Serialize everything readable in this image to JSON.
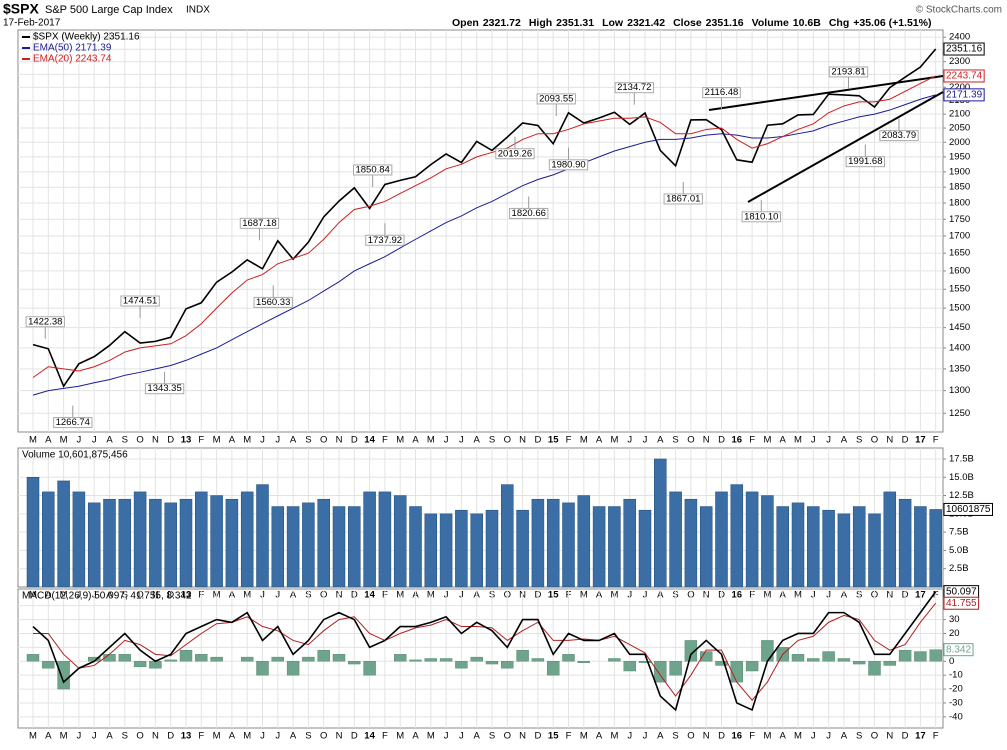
{
  "header": {
    "symbol": "$SPX",
    "name": "S&P 500 Large Cap Index",
    "exchange": "INDX",
    "date": "17-Feb-2017",
    "quote": [
      {
        "label": "Open",
        "value": "2321.72"
      },
      {
        "label": "High",
        "value": "2351.31"
      },
      {
        "label": "Low",
        "value": "2321.42"
      },
      {
        "label": "Close",
        "value": "2351.16"
      },
      {
        "label": "Volume",
        "value": "10.6B"
      },
      {
        "label": "Chg",
        "value": "+35.06 (+1.51%)"
      }
    ],
    "copyright": "© StockCharts.com"
  },
  "chart_data": [
    {
      "type": "line",
      "log": true,
      "grid": true,
      "categories": [
        "M",
        "A",
        "M",
        "J",
        "J",
        "A",
        "S",
        "O",
        "N",
        "D",
        "13",
        "F",
        "M",
        "A",
        "M",
        "J",
        "J",
        "A",
        "S",
        "O",
        "N",
        "D",
        "14",
        "F",
        "M",
        "A",
        "M",
        "J",
        "J",
        "A",
        "S",
        "O",
        "N",
        "D",
        "15",
        "F",
        "M",
        "A",
        "M",
        "J",
        "J",
        "A",
        "S",
        "O",
        "N",
        "D",
        "16",
        "F",
        "M",
        "A",
        "M",
        "J",
        "J",
        "A",
        "S",
        "O",
        "N",
        "D",
        "17",
        "F"
      ],
      "series": [
        {
          "name": "$SPX (Weekly) 2351.16",
          "color": "#000000",
          "values": [
            1408,
            1398,
            1310,
            1362,
            1379,
            1406,
            1440,
            1412,
            1416,
            1426,
            1498,
            1514,
            1569,
            1597,
            1631,
            1606,
            1686,
            1633,
            1682,
            1757,
            1806,
            1848,
            1783,
            1859,
            1872,
            1884,
            1924,
            1960,
            1931,
            2003,
            1972,
            2018,
            2068,
            2059,
            1995,
            2105,
            2068,
            2086,
            2107,
            2063,
            2104,
            1972,
            1920,
            2079,
            2080,
            2044,
            1940,
            1932,
            2060,
            2065,
            2097,
            2099,
            2174,
            2171,
            2168,
            2126,
            2199,
            2239,
            2279,
            2351.16
          ]
        },
        {
          "name": "EMA(50) 2171.39",
          "color": "#1c1c96",
          "values": [
            1290,
            1300,
            1305,
            1310,
            1318,
            1325,
            1335,
            1342,
            1350,
            1358,
            1370,
            1385,
            1400,
            1420,
            1440,
            1460,
            1480,
            1500,
            1520,
            1545,
            1570,
            1600,
            1620,
            1640,
            1665,
            1690,
            1715,
            1740,
            1760,
            1785,
            1805,
            1830,
            1855,
            1875,
            1890,
            1910,
            1930,
            1950,
            1970,
            1985,
            2000,
            2010,
            2010,
            2015,
            2025,
            2030,
            2025,
            2015,
            2015,
            2020,
            2030,
            2040,
            2060,
            2075,
            2090,
            2100,
            2115,
            2135,
            2155,
            2171.39
          ]
        },
        {
          "name": "EMA(20) 2243.74",
          "color": "#cc2020",
          "values": [
            1330,
            1355,
            1350,
            1345,
            1355,
            1370,
            1390,
            1400,
            1405,
            1410,
            1430,
            1460,
            1500,
            1540,
            1575,
            1590,
            1620,
            1635,
            1650,
            1690,
            1740,
            1780,
            1790,
            1805,
            1830,
            1855,
            1880,
            1910,
            1925,
            1950,
            1965,
            1980,
            2010,
            2030,
            2030,
            2045,
            2065,
            2075,
            2085,
            2085,
            2090,
            2070,
            2030,
            2030,
            2045,
            2050,
            2010,
            1980,
            1995,
            2020,
            2045,
            2065,
            2105,
            2130,
            2145,
            2145,
            2155,
            2185,
            2215,
            2243.74
          ]
        }
      ],
      "ylim": [
        1210,
        2430
      ],
      "yticks": [
        1250,
        1300,
        1350,
        1400,
        1450,
        1500,
        1550,
        1600,
        1650,
        1700,
        1750,
        1800,
        1850,
        1900,
        1950,
        2000,
        2050,
        2100,
        2150,
        2200,
        2250,
        2300,
        2350,
        2400
      ],
      "annotations": [
        {
          "label": "1422.38",
          "value": 1422.38,
          "x": 0.8
        },
        {
          "label": "1266.74",
          "value": 1266.74,
          "x": 2.6
        },
        {
          "label": "1474.51",
          "value": 1474.51,
          "x": 7.0
        },
        {
          "label": "1343.35",
          "value": 1343.35,
          "x": 8.6
        },
        {
          "label": "1687.18",
          "value": 1687.18,
          "x": 14.8
        },
        {
          "label": "1560.33",
          "value": 1560.33,
          "x": 15.7
        },
        {
          "label": "1850.84",
          "value": 1850.84,
          "x": 22.2
        },
        {
          "label": "1737.92",
          "value": 1737.92,
          "x": 23.0
        },
        {
          "label": "2019.26",
          "value": 2019.26,
          "x": 31.5
        },
        {
          "label": "1820.66",
          "value": 1820.66,
          "x": 32.4
        },
        {
          "label": "2093.55",
          "value": 2093.55,
          "x": 34.2
        },
        {
          "label": "1980.90",
          "value": 1980.9,
          "x": 35.0
        },
        {
          "label": "2134.72",
          "value": 2134.72,
          "x": 39.3
        },
        {
          "label": "1867.01",
          "value": 1867.01,
          "x": 42.5
        },
        {
          "label": "2116.48",
          "value": 2116.48,
          "x": 45.0
        },
        {
          "label": "1810.10",
          "value": 1810.1,
          "x": 47.6
        },
        {
          "label": "2193.81",
          "value": 2193.81,
          "x": 53.3
        },
        {
          "label": "1991.68",
          "value": 1991.68,
          "x": 54.4
        },
        {
          "label": "2083.79",
          "value": 2083.79,
          "x": 56.6
        }
      ]
    },
    {
      "type": "bar",
      "grid": true,
      "title": "Volume 10,601,875,456",
      "tag": "10601875",
      "color": "#3a6ea5",
      "values": [
        15,
        13,
        14.5,
        13,
        11.5,
        12,
        12,
        13,
        12,
        11.5,
        12,
        13,
        12.5,
        12,
        13,
        14,
        11,
        11,
        11.5,
        12,
        11,
        11,
        13,
        13,
        12.5,
        11,
        10,
        10,
        10.5,
        10,
        10.5,
        14,
        10.5,
        12,
        12,
        11.5,
        12.5,
        11,
        11,
        12,
        10.5,
        17.5,
        13,
        12,
        11,
        13,
        14,
        13,
        12.5,
        11,
        11.5,
        11,
        10.5,
        10,
        11,
        10,
        13,
        12,
        11,
        10.601875456
      ],
      "ylim": [
        0,
        19
      ],
      "yticks": [
        {
          "value": 2.5,
          "label": "2.5B"
        },
        {
          "value": 5,
          "label": "5.0B"
        },
        {
          "value": 7.5,
          "label": "7.5B"
        },
        {
          "value": 10,
          "label": "10.0B"
        },
        {
          "value": 12.5,
          "label": "12.5B"
        },
        {
          "value": 15,
          "label": "15.0B"
        },
        {
          "value": 17.5,
          "label": "17.5B"
        }
      ]
    },
    {
      "type": "macd",
      "grid": true,
      "title": "MACD(12,26,9) 50.097, 41.755, 8.342",
      "series": [
        {
          "name": "MACD",
          "color": "#000000",
          "values": [
            25,
            15,
            -15,
            -5,
            0,
            10,
            20,
            8,
            0,
            5,
            20,
            25,
            30,
            28,
            35,
            15,
            25,
            5,
            15,
            30,
            35,
            30,
            10,
            15,
            25,
            25,
            28,
            32,
            20,
            28,
            22,
            10,
            30,
            30,
            5,
            20,
            15,
            15,
            20,
            5,
            5,
            -25,
            -35,
            5,
            15,
            5,
            -30,
            -35,
            0,
            15,
            20,
            20,
            35,
            35,
            28,
            5,
            5,
            20,
            35,
            50.097
          ]
        },
        {
          "name": "Signal",
          "color": "#b02020",
          "values": [
            20,
            20,
            5,
            -5,
            -3,
            5,
            15,
            12,
            5,
            4,
            12,
            20,
            27,
            28,
            32,
            25,
            22,
            15,
            12,
            22,
            30,
            32,
            20,
            15,
            20,
            24,
            26,
            30,
            25,
            25,
            24,
            15,
            22,
            28,
            15,
            15,
            16,
            15,
            18,
            12,
            6,
            -10,
            -25,
            -10,
            8,
            8,
            -15,
            -28,
            -15,
            5,
            15,
            18,
            28,
            33,
            30,
            15,
            8,
            12,
            28,
            41.755
          ]
        },
        {
          "name": "Histogram",
          "color": "#6fa48c",
          "values": [
            5,
            -5,
            -20,
            0,
            3,
            5,
            5,
            -4,
            -5,
            1,
            8,
            5,
            3,
            0,
            3,
            -10,
            3,
            -10,
            3,
            8,
            5,
            -2,
            -10,
            0,
            5,
            1,
            2,
            2,
            -5,
            3,
            -2,
            -5,
            8,
            2,
            -10,
            5,
            -1,
            0,
            2,
            -7,
            -1,
            -15,
            -10,
            15,
            7,
            -3,
            -15,
            -7,
            15,
            10,
            5,
            2,
            7,
            2,
            -2,
            -10,
            -3,
            8,
            7,
            8.342
          ]
        }
      ],
      "ylim": [
        -48,
        52
      ],
      "yticks": [
        -40,
        -30,
        -20,
        -10,
        0,
        10,
        20,
        30,
        40
      ]
    }
  ]
}
